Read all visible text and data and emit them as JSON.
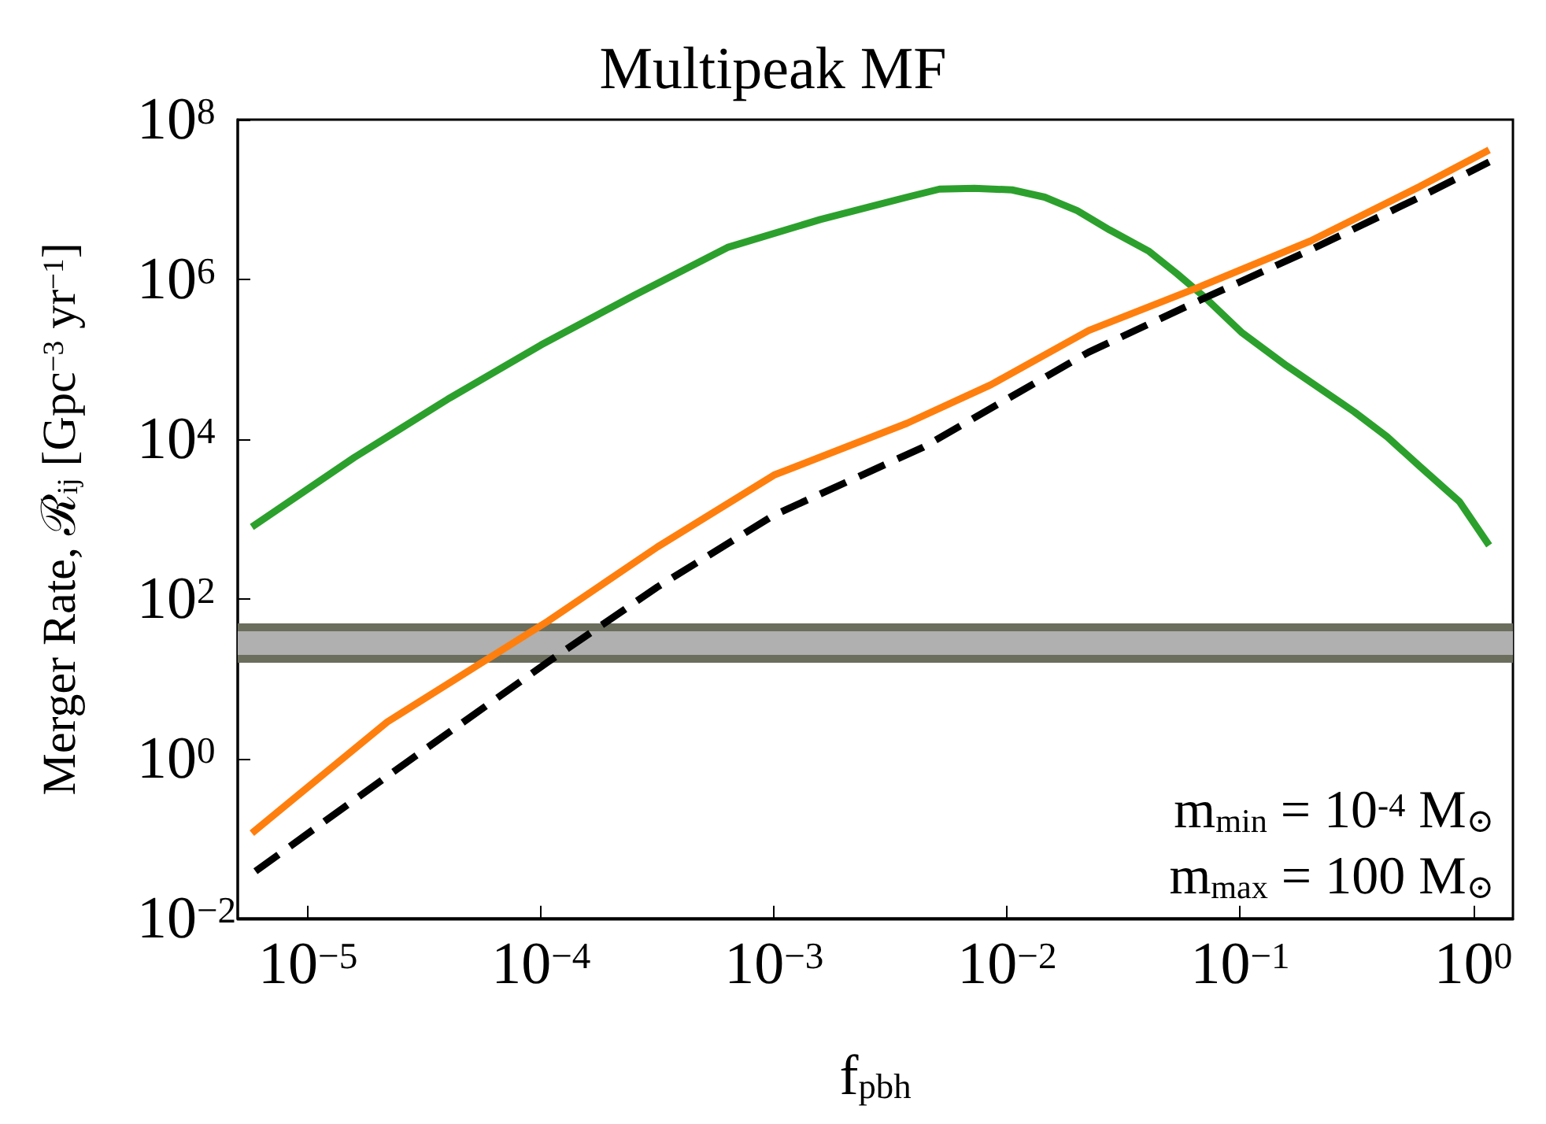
{
  "chart_data": {
    "type": "line",
    "title": "Multipeak MF",
    "xlabel": "f$_{pbh}$",
    "ylabel": "Merger Rate, ℛ$_{ij}$ [Gpc$^{−3}$ yr$^{−1}$]",
    "log": "xy",
    "grid": false,
    "marker": "none",
    "xlim": [
      5e-06,
      1.48
    ],
    "ylim": [
      0.01,
      100000000
    ],
    "xticks": [
      {
        "value": 1e-05,
        "label": "10$^{−5}$"
      },
      {
        "value": 0.0001,
        "label": "10$^{−4}$"
      },
      {
        "value": 0.001,
        "label": "10$^{−3}$"
      },
      {
        "value": 0.01,
        "label": "10$^{−2}$"
      },
      {
        "value": 0.1,
        "label": "10$^{−1}$"
      },
      {
        "value": 1,
        "label": "10$^{0}$"
      }
    ],
    "yticks": [
      {
        "value": 0.01,
        "label": "10$^{−2}$"
      },
      {
        "value": 1,
        "label": "10$^{0}$"
      },
      {
        "value": 100,
        "label": "10$^{2}$"
      },
      {
        "value": 10000,
        "label": "10$^{4}$"
      },
      {
        "value": 1000000,
        "label": "10$^{6}$"
      },
      {
        "value": 100000000,
        "label": "10$^{8}$"
      }
    ],
    "series": [
      {
        "color": "#2ca02c",
        "line_style": "solid",
        "x": [
          5.75e-06,
          1.58e-05,
          3.98e-05,
          0.0001,
          0.000251,
          0.000631,
          0.00158,
          0.00372,
          0.00513,
          0.00724,
          0.0105,
          0.0145,
          0.02,
          0.0275,
          0.0407,
          0.0537,
          0.0708,
          0.102,
          0.158,
          0.309,
          0.427,
          0.589,
          0.871,
          1.17
        ],
        "values": [
          794,
          5890,
          31600,
          151000,
          631000,
          2510000,
          5620000,
          10700000,
          13500000,
          13800000,
          13200000,
          10700000,
          7240000,
          4170000,
          2240000,
          1170000,
          589000,
          214000,
          83200,
          21900,
          10700,
          4570,
          1660,
          468
        ]
      },
      {
        "color": "#ff7f0e",
        "line_style": "solid",
        "x": [
          5.75e-06,
          2.19e-05,
          0.000107,
          0.000316,
          0.001,
          0.00372,
          0.00851,
          0.0224,
          0.0661,
          0.2,
          0.589,
          1.17
        ],
        "values": [
          0.117,
          2.88,
          52.5,
          447,
          3550,
          15800,
          47900,
          229000,
          794000,
          3020000,
          14500000,
          41700000
        ]
      },
      {
        "color": "#000000",
        "line_style": "dashed",
        "x": [
          5.96e-06,
          2.19e-05,
          0.000107,
          0.000316,
          0.001,
          0.00437,
          0.0224,
          0.0661,
          0.2,
          0.589,
          1.17
        ],
        "values": [
          0.0389,
          0.603,
          16.2,
          141,
          1120,
          7940,
          123000,
          537000,
          2340000,
          10700000,
          29500000
        ]
      }
    ],
    "bands": [
      {
        "axis": "y",
        "from": 18,
        "to": 44,
        "color": "#b0b0b0"
      }
    ],
    "ref_lines": [
      {
        "axis": "y",
        "value": 18,
        "color": "#6b6e5c"
      },
      {
        "axis": "y",
        "value": 44,
        "color": "#6b6e5c"
      }
    ],
    "annotations": [
      "m$_{min}$ = 10$^{-4}$ M$_{⊙}$",
      "m$_{max}$ = 100 M$_{⊙}$"
    ]
  }
}
